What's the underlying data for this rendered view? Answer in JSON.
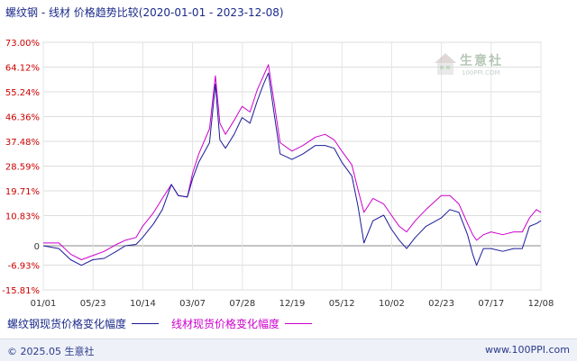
{
  "header": {
    "title": "螺纹钢 - 线材 价格趋势比较",
    "date_range": "(2020-01-01 - 2023-12-08)"
  },
  "watermark": {
    "name": "生意社",
    "url": "100PPI.COM"
  },
  "footer": {
    "copyright": "© 2025.05 生意社",
    "site": "www.100PPI.com"
  },
  "colors": {
    "series1": "#1a1a9a",
    "series2": "#cc00cc",
    "axis_text": "#cc0000",
    "grid": "#cccccc"
  },
  "chart_data": {
    "type": "line",
    "ylim": [
      -15.81,
      73.0
    ],
    "y_ticks": [
      "73.00%",
      "64.12%",
      "55.24%",
      "46.36%",
      "37.48%",
      "28.59%",
      "19.71%",
      "10.83%",
      "0",
      "-6.93%",
      "-15.81%"
    ],
    "y_tick_values": [
      73.0,
      64.12,
      55.24,
      46.36,
      37.48,
      28.59,
      19.71,
      10.83,
      0,
      -6.93,
      -15.81
    ],
    "x_ticks": [
      "01/01",
      "05/23",
      "10/14",
      "03/07",
      "07/28",
      "12/19",
      "05/12",
      "10/02",
      "02/23",
      "07/17",
      "12/08"
    ],
    "series": [
      {
        "name": "螺纹钢现货价格变化幅度",
        "points": [
          [
            "2020-01-01",
            0.0
          ],
          [
            "2020-02-15",
            -1.0
          ],
          [
            "2020-03-20",
            -5.0
          ],
          [
            "2020-04-20",
            -7.0
          ],
          [
            "2020-05-23",
            -5.0
          ],
          [
            "2020-06-25",
            -4.5
          ],
          [
            "2020-07-30",
            -2.0
          ],
          [
            "2020-08-25",
            0.0
          ],
          [
            "2020-09-25",
            0.5
          ],
          [
            "2020-10-14",
            3.0
          ],
          [
            "2020-11-15",
            8.0
          ],
          [
            "2020-12-10",
            13.0
          ],
          [
            "2021-01-05",
            22.0
          ],
          [
            "2021-01-25",
            18.0
          ],
          [
            "2021-02-20",
            17.5
          ],
          [
            "2021-03-07",
            24.0
          ],
          [
            "2021-03-25",
            30.0
          ],
          [
            "2021-04-25",
            37.0
          ],
          [
            "2021-05-12",
            58.0
          ],
          [
            "2021-05-25",
            38.0
          ],
          [
            "2021-06-10",
            35.0
          ],
          [
            "2021-07-05",
            40.0
          ],
          [
            "2021-07-28",
            46.0
          ],
          [
            "2021-08-20",
            44.0
          ],
          [
            "2021-09-10",
            52.0
          ],
          [
            "2021-09-28",
            58.0
          ],
          [
            "2021-10-12",
            62.0
          ],
          [
            "2021-10-28",
            48.0
          ],
          [
            "2021-11-15",
            33.0
          ],
          [
            "2021-12-19",
            31.0
          ],
          [
            "2022-01-20",
            33.0
          ],
          [
            "2022-02-25",
            36.0
          ],
          [
            "2022-03-25",
            36.0
          ],
          [
            "2022-04-20",
            35.0
          ],
          [
            "2022-05-12",
            30.0
          ],
          [
            "2022-06-10",
            25.0
          ],
          [
            "2022-06-28",
            14.0
          ],
          [
            "2022-07-15",
            1.0
          ],
          [
            "2022-08-10",
            9.0
          ],
          [
            "2022-09-10",
            11.0
          ],
          [
            "2022-10-02",
            6.0
          ],
          [
            "2022-10-25",
            2.0
          ],
          [
            "2022-11-15",
            -1.0
          ],
          [
            "2022-12-10",
            3.0
          ],
          [
            "2023-01-10",
            7.0
          ],
          [
            "2023-02-23",
            10.0
          ],
          [
            "2023-03-20",
            13.0
          ],
          [
            "2023-04-15",
            12.0
          ],
          [
            "2023-05-10",
            4.0
          ],
          [
            "2023-05-25",
            -3.0
          ],
          [
            "2023-06-05",
            -7.0
          ],
          [
            "2023-06-25",
            -1.0
          ],
          [
            "2023-07-17",
            -1.0
          ],
          [
            "2023-08-20",
            -2.0
          ],
          [
            "2023-09-20",
            -1.0
          ],
          [
            "2023-10-15",
            -1.0
          ],
          [
            "2023-11-05",
            7.0
          ],
          [
            "2023-11-25",
            8.0
          ],
          [
            "2023-12-08",
            9.0
          ]
        ]
      },
      {
        "name": "线材现货价格变化幅度",
        "points": [
          [
            "2020-01-01",
            1.0
          ],
          [
            "2020-02-15",
            1.0
          ],
          [
            "2020-03-20",
            -3.0
          ],
          [
            "2020-04-20",
            -5.0
          ],
          [
            "2020-05-23",
            -3.5
          ],
          [
            "2020-06-25",
            -2.0
          ],
          [
            "2020-07-30",
            0.5
          ],
          [
            "2020-08-25",
            2.0
          ],
          [
            "2020-09-25",
            3.0
          ],
          [
            "2020-10-14",
            7.0
          ],
          [
            "2020-11-15",
            12.0
          ],
          [
            "2020-12-10",
            17.0
          ],
          [
            "2021-01-05",
            22.0
          ],
          [
            "2021-01-25",
            18.0
          ],
          [
            "2021-02-20",
            17.5
          ],
          [
            "2021-03-07",
            26.0
          ],
          [
            "2021-03-25",
            33.0
          ],
          [
            "2021-04-25",
            42.0
          ],
          [
            "2021-05-12",
            61.0
          ],
          [
            "2021-05-25",
            44.0
          ],
          [
            "2021-06-10",
            40.0
          ],
          [
            "2021-07-05",
            45.0
          ],
          [
            "2021-07-28",
            50.0
          ],
          [
            "2021-08-20",
            48.0
          ],
          [
            "2021-09-10",
            56.0
          ],
          [
            "2021-09-28",
            61.0
          ],
          [
            "2021-10-12",
            65.0
          ],
          [
            "2021-10-28",
            52.0
          ],
          [
            "2021-11-15",
            37.0
          ],
          [
            "2021-12-19",
            34.0
          ],
          [
            "2022-01-20",
            36.0
          ],
          [
            "2022-02-25",
            39.0
          ],
          [
            "2022-03-25",
            40.0
          ],
          [
            "2022-04-20",
            38.0
          ],
          [
            "2022-05-12",
            34.0
          ],
          [
            "2022-06-10",
            29.0
          ],
          [
            "2022-06-28",
            20.0
          ],
          [
            "2022-07-15",
            12.0
          ],
          [
            "2022-08-10",
            17.0
          ],
          [
            "2022-09-10",
            15.0
          ],
          [
            "2022-10-02",
            11.0
          ],
          [
            "2022-10-25",
            7.0
          ],
          [
            "2022-11-15",
            5.0
          ],
          [
            "2022-12-10",
            9.0
          ],
          [
            "2023-01-10",
            13.0
          ],
          [
            "2023-02-23",
            18.0
          ],
          [
            "2023-03-20",
            18.0
          ],
          [
            "2023-04-15",
            15.0
          ],
          [
            "2023-05-10",
            8.0
          ],
          [
            "2023-05-25",
            4.0
          ],
          [
            "2023-06-05",
            2.0
          ],
          [
            "2023-06-25",
            4.0
          ],
          [
            "2023-07-17",
            5.0
          ],
          [
            "2023-08-20",
            4.0
          ],
          [
            "2023-09-20",
            5.0
          ],
          [
            "2023-10-15",
            5.0
          ],
          [
            "2023-11-05",
            10.0
          ],
          [
            "2023-11-25",
            13.0
          ],
          [
            "2023-12-08",
            12.0
          ]
        ]
      }
    ]
  }
}
